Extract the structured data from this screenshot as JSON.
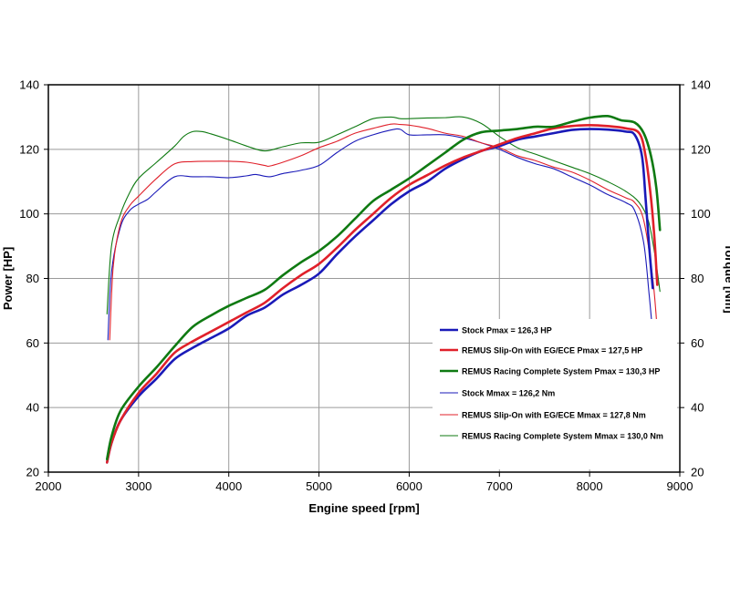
{
  "chart_data": {
    "type": "line",
    "title": "",
    "xlabel": "Engine speed [rpm]",
    "ylabel_left": "Power [HP]",
    "ylabel_right": "Torque [Nm]",
    "xlim": [
      2000,
      9000
    ],
    "ylim_left": [
      20,
      140
    ],
    "ylim_right": [
      20,
      140
    ],
    "x_ticks": [
      "2000",
      "3000",
      "4000",
      "5000",
      "6000",
      "7000",
      "8000",
      "9000"
    ],
    "y_ticks_left": [
      "20",
      "40",
      "60",
      "80",
      "100",
      "120",
      "140"
    ],
    "y_ticks_right": [
      "20",
      "40",
      "60",
      "80",
      "100",
      "120",
      "140"
    ],
    "grid": true,
    "legend_position": "bottom-right",
    "series": [
      {
        "name": "Stock Pmax = 126,3 HP",
        "axis": "left",
        "color": "#1a1ab8",
        "weight": "thick",
        "x": [
          2650,
          2700,
          2800,
          3000,
          3200,
          3400,
          3600,
          3800,
          4000,
          4200,
          4400,
          4600,
          4800,
          5000,
          5200,
          5400,
          5600,
          5800,
          6000,
          6200,
          6400,
          6600,
          6800,
          7000,
          7200,
          7400,
          7600,
          7800,
          8000,
          8200,
          8400,
          8500,
          8580,
          8620,
          8660,
          8700
        ],
        "y": [
          23,
          29,
          36,
          43.5,
          49,
          55,
          58.5,
          61.5,
          64.5,
          68.5,
          71,
          75,
          78,
          81.5,
          87.5,
          93,
          98,
          103,
          107,
          110,
          114,
          117,
          119.5,
          121,
          123,
          124,
          125,
          126,
          126.3,
          126.1,
          125.5,
          124.5,
          118,
          105,
          90,
          77
        ]
      },
      {
        "name": "REMUS Slip-On with EG/ECE Pmax = 127,5 HP",
        "axis": "left",
        "color": "#e0202a",
        "weight": "thick",
        "x": [
          2650,
          2700,
          2800,
          3000,
          3200,
          3400,
          3600,
          3800,
          4000,
          4200,
          4400,
          4600,
          4800,
          5000,
          5200,
          5400,
          5600,
          5800,
          6000,
          6200,
          6400,
          6600,
          6800,
          7000,
          7200,
          7400,
          7600,
          7800,
          8000,
          8200,
          8400,
          8550,
          8620,
          8680,
          8720,
          8750
        ],
        "y": [
          23,
          29,
          36,
          44.5,
          50.5,
          57,
          60.5,
          63.5,
          66.5,
          69.5,
          72.5,
          77,
          81,
          84.5,
          89.5,
          95,
          100,
          105,
          109,
          112,
          115,
          117.5,
          119.5,
          121.5,
          123.5,
          125,
          126.5,
          127.2,
          127.5,
          127.2,
          126.5,
          125,
          118,
          105,
          92,
          78
        ]
      },
      {
        "name": "REMUS Racing Complete System Pmax = 130,3 HP",
        "axis": "left",
        "color": "#0f7a12",
        "weight": "thick",
        "x": [
          2650,
          2700,
          2800,
          3000,
          3200,
          3400,
          3600,
          3800,
          4000,
          4200,
          4400,
          4600,
          4800,
          5000,
          5200,
          5400,
          5600,
          5800,
          6000,
          6200,
          6400,
          6600,
          6800,
          7000,
          7200,
          7400,
          7600,
          7800,
          8000,
          8200,
          8350,
          8500,
          8600,
          8680,
          8740,
          8780
        ],
        "y": [
          24,
          31,
          39,
          46.5,
          52.5,
          59,
          65,
          68.5,
          71.5,
          74,
          76.5,
          81,
          85,
          88.5,
          93,
          98.5,
          104,
          107.5,
          111,
          115,
          119,
          123,
          125.3,
          125.8,
          126.3,
          127,
          127,
          128.5,
          129.8,
          130.3,
          129,
          128.3,
          125,
          118,
          108,
          95
        ]
      },
      {
        "name": "Stock Mmax = 126,2 Nm",
        "axis": "right",
        "color": "#1a1ab8",
        "weight": "thin",
        "x": [
          2660,
          2700,
          2800,
          2900,
          3000,
          3100,
          3200,
          3400,
          3600,
          3800,
          4000,
          4200,
          4300,
          4450,
          4600,
          4800,
          5000,
          5200,
          5400,
          5600,
          5800,
          5900,
          6000,
          6200,
          6400,
          6600,
          6800,
          7000,
          7200,
          7400,
          7600,
          7800,
          8000,
          8200,
          8400,
          8500,
          8600,
          8660,
          8700
        ],
        "y": [
          61,
          82,
          96,
          101,
          103,
          104.5,
          107,
          111.5,
          111.5,
          111.5,
          111.2,
          111.8,
          112.2,
          111.5,
          112.5,
          113.5,
          115,
          119,
          122.5,
          124.5,
          126,
          126.2,
          124.5,
          124.5,
          124.5,
          123.5,
          122,
          120,
          117.5,
          115.5,
          114,
          111.5,
          109,
          106,
          103.5,
          101,
          91,
          75,
          63
        ]
      },
      {
        "name": "REMUS Slip-On with EG/ECE Mmax = 127,8 Nm",
        "axis": "right",
        "color": "#e0202a",
        "weight": "thin",
        "x": [
          2680,
          2720,
          2800,
          2900,
          3000,
          3200,
          3400,
          3600,
          3800,
          4000,
          4200,
          4400,
          4450,
          4600,
          4800,
          5000,
          5200,
          5400,
          5600,
          5800,
          5900,
          6000,
          6200,
          6400,
          6600,
          6800,
          7000,
          7200,
          7400,
          7600,
          7800,
          8000,
          8200,
          8400,
          8500,
          8600,
          8700,
          8750
        ],
        "y": [
          61,
          84,
          97,
          102.5,
          105.5,
          111,
          115.5,
          116.2,
          116.3,
          116.3,
          116,
          115,
          114.8,
          116,
          118,
          120.5,
          122.5,
          125,
          126.5,
          127.8,
          127.7,
          127.5,
          126.5,
          125,
          124,
          122,
          120.5,
          118,
          116.5,
          114.5,
          113,
          110.5,
          107.5,
          105,
          103.5,
          98,
          80,
          64
        ]
      },
      {
        "name": "REMUS Racing Complete System Mmax = 130,0 Nm",
        "axis": "right",
        "color": "#0f7a12",
        "weight": "thin",
        "x": [
          2650,
          2700,
          2800,
          2900,
          3000,
          3200,
          3400,
          3500,
          3600,
          3700,
          3800,
          4000,
          4200,
          4400,
          4600,
          4800,
          5000,
          5200,
          5400,
          5600,
          5800,
          5900,
          6000,
          6200,
          6400,
          6600,
          6800,
          7000,
          7200,
          7400,
          7600,
          7800,
          8000,
          8200,
          8400,
          8550,
          8650,
          8720,
          8780
        ],
        "y": [
          69,
          90,
          100,
          106.5,
          111,
          116,
          121,
          124,
          125.5,
          125.5,
          124.8,
          123,
          121,
          119.5,
          120.8,
          122,
          122.2,
          124.5,
          127,
          129.5,
          130,
          129.5,
          129.5,
          129.7,
          129.8,
          130,
          128,
          124,
          120.5,
          118.5,
          116.5,
          114.5,
          112.5,
          110,
          107,
          103.5,
          98,
          88,
          76
        ]
      }
    ]
  }
}
